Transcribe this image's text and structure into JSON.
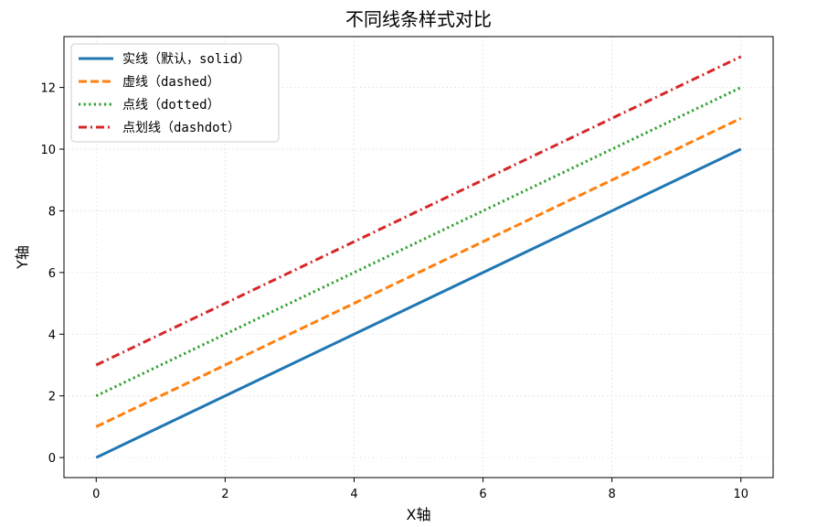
{
  "chart_data": {
    "type": "line",
    "title": "不同线条样式对比",
    "xlabel": "X轴",
    "ylabel": "Y轴",
    "xlim": [
      -0.5,
      10.5
    ],
    "ylim": [
      -0.65,
      13.65
    ],
    "xticks": [
      0,
      2,
      4,
      6,
      8,
      10
    ],
    "yticks": [
      0,
      2,
      4,
      6,
      8,
      10,
      12
    ],
    "grid": true,
    "legend_position": "top-left",
    "series": [
      {
        "name": "实线（默认，solid）",
        "style": "solid",
        "color": "#1f77b4",
        "x": [
          0,
          10
        ],
        "y": [
          0,
          10
        ]
      },
      {
        "name": "虚线（dashed）",
        "style": "dashed",
        "color": "#ff7f0e",
        "x": [
          0,
          10
        ],
        "y": [
          1,
          11
        ]
      },
      {
        "name": "点线（dotted）",
        "style": "dotted",
        "color": "#2ca02c",
        "x": [
          0,
          10
        ],
        "y": [
          2,
          12
        ]
      },
      {
        "name": "点划线（dashdot）",
        "style": "dashdot",
        "color": "#d62728",
        "x": [
          0,
          10
        ],
        "y": [
          3,
          13
        ]
      }
    ]
  }
}
